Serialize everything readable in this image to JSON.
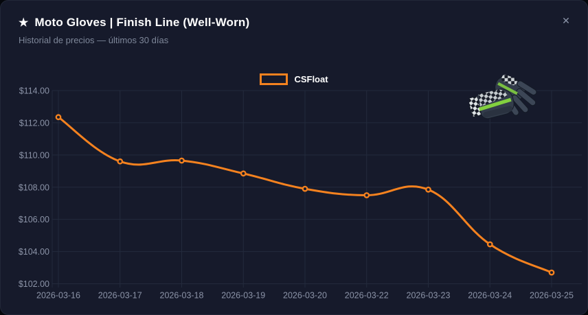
{
  "theme": {
    "accent": "#f5821f",
    "card_bg": "#161a2b",
    "outer_bg": "#05070c",
    "grid_color": "#232a3c",
    "text_color": "#ffffff",
    "muted_color": "#7e8799",
    "tick_label_color": "#8b93a7"
  },
  "header": {
    "star_icon": "★",
    "title": "Moto Gloves | Finish Line (Well-Worn)",
    "subtitle": "Historial de precios — últimos 30 días",
    "close_icon": "✕"
  },
  "item_image": {
    "name": "moto-gloves-finish-line-thumbnail"
  },
  "chart_data": {
    "type": "line",
    "title": "Historial de precios — últimos 30 días",
    "categories": [
      "2026-03-16",
      "2026-03-17",
      "2026-03-18",
      "2026-03-19",
      "2026-03-20",
      "2026-03-22",
      "2026-03-23",
      "2026-03-24",
      "2026-03-25"
    ],
    "series": [
      {
        "name": "CSFloat",
        "color": "#f5821f",
        "values": [
          112.35,
          109.6,
          109.65,
          108.85,
          107.9,
          107.5,
          107.85,
          104.45,
          102.7
        ]
      }
    ],
    "xlabel": "",
    "ylabel": "",
    "ylim": [
      102,
      114
    ],
    "y_ticks": [
      114,
      112,
      110,
      108,
      106,
      104,
      102
    ],
    "y_tick_labels": [
      "$114.00",
      "$112.00",
      "$110.00",
      "$108.00",
      "$106.00",
      "$104.00",
      "$102.00"
    ],
    "grid": true,
    "legend_position": "top",
    "line_tension": 0.4,
    "point_style": "hollow-circle"
  }
}
